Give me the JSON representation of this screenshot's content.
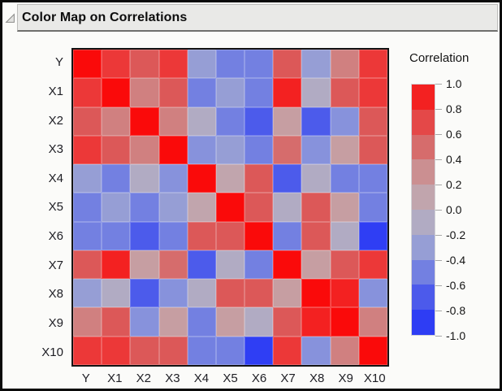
{
  "header": {
    "title": "Color Map on Correlations",
    "disclosure_icon": "triangle-open"
  },
  "chart_data": {
    "type": "heatmap",
    "title": "Color Map on Correlations",
    "variables": [
      "Y",
      "X1",
      "X2",
      "X3",
      "X4",
      "X5",
      "X6",
      "X7",
      "X8",
      "X9",
      "X10"
    ],
    "matrix": [
      [
        1.0,
        0.8,
        0.6,
        0.8,
        -0.3,
        -0.5,
        -0.5,
        0.6,
        -0.3,
        0.4,
        0.8
      ],
      [
        0.8,
        1.0,
        0.4,
        0.6,
        -0.5,
        -0.3,
        -0.5,
        0.9,
        -0.1,
        0.6,
        0.8
      ],
      [
        0.6,
        0.4,
        1.0,
        0.4,
        -0.1,
        -0.5,
        -0.7,
        0.2,
        -0.7,
        -0.4,
        0.6
      ],
      [
        0.8,
        0.6,
        0.4,
        1.0,
        -0.4,
        -0.3,
        -0.5,
        0.5,
        -0.4,
        0.2,
        0.6
      ],
      [
        -0.3,
        -0.5,
        -0.1,
        -0.4,
        1.0,
        0.1,
        0.6,
        -0.7,
        -0.1,
        -0.5,
        -0.5
      ],
      [
        -0.5,
        -0.3,
        -0.5,
        -0.3,
        0.1,
        1.0,
        0.6,
        -0.1,
        0.6,
        0.2,
        -0.5
      ],
      [
        -0.5,
        -0.5,
        -0.7,
        -0.5,
        0.6,
        0.6,
        1.0,
        -0.5,
        0.6,
        -0.1,
        -0.9
      ],
      [
        0.6,
        0.9,
        0.2,
        0.5,
        -0.7,
        -0.1,
        -0.5,
        1.0,
        0.2,
        0.6,
        0.8
      ],
      [
        -0.3,
        -0.1,
        -0.7,
        -0.4,
        -0.1,
        0.6,
        0.6,
        0.2,
        1.0,
        0.9,
        -0.4
      ],
      [
        0.4,
        0.6,
        -0.4,
        0.2,
        -0.5,
        0.2,
        -0.1,
        0.6,
        0.9,
        1.0,
        0.4
      ],
      [
        0.8,
        0.8,
        0.6,
        0.6,
        -0.5,
        -0.5,
        -0.9,
        0.8,
        -0.4,
        0.4,
        1.0
      ]
    ],
    "legend": {
      "title": "Correlation",
      "tick_labels": [
        "1.0",
        "0.8",
        "0.6",
        "0.4",
        "0.2",
        "0.0",
        "-0.2",
        "-0.4",
        "-0.6",
        "-0.8",
        "-1.0"
      ],
      "range": [
        -1.0,
        1.0
      ],
      "bands": 10,
      "position": "right"
    },
    "colors": {
      "scale_stops": [
        {
          "value": 1.0,
          "color": "#FA0A0A"
        },
        {
          "value": 0.8,
          "color": "#EC3838"
        },
        {
          "value": 0.6,
          "color": "#DC5858"
        },
        {
          "value": 0.4,
          "color": "#D08080"
        },
        {
          "value": 0.2,
          "color": "#C69EA2"
        },
        {
          "value": 0.0,
          "color": "#BCABB8"
        },
        {
          "value": -0.2,
          "color": "#A5AACE"
        },
        {
          "value": -0.4,
          "color": "#8792DC"
        },
        {
          "value": -0.6,
          "color": "#5F6DE6"
        },
        {
          "value": -0.8,
          "color": "#3948F0"
        },
        {
          "value": -1.0,
          "color": "#2433F8"
        }
      ]
    },
    "layout": {
      "grid": "off",
      "cell_rows": 11,
      "cell_cols": 11
    }
  }
}
